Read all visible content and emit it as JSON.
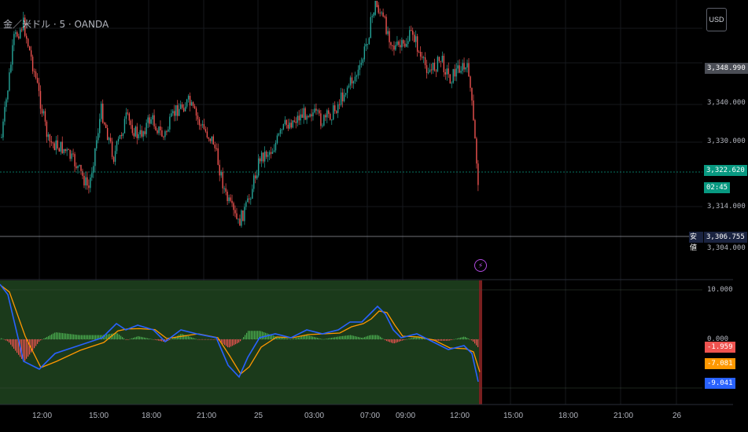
{
  "header": {
    "symbol_title": "金／米ドル · 5 · OANDA",
    "currency_button": "USD"
  },
  "price_axis": {
    "labels": [
      "3,340.000",
      "3,330.000",
      "3,314.000",
      "3,304.000"
    ],
    "tags": {
      "upper": "3,348.990",
      "last_price": "3,322.620",
      "countdown": "02:45",
      "session_label": "安値",
      "session_value": "3,306.755"
    }
  },
  "indicator_axis": {
    "top_label": "10.000",
    "mid_label": "0.000",
    "values": {
      "histogram": "-1.959",
      "signal": "-7.081",
      "macd": "-9.041"
    }
  },
  "time_axis": {
    "labels": [
      "12:00",
      "15:00",
      "18:00",
      "21:00",
      "25",
      "03:00",
      "07:00",
      "09:00",
      "12:00",
      "15:00",
      "18:00",
      "21:00",
      "26"
    ]
  },
  "icons": {
    "event_marker": "lightning-icon"
  },
  "colors": {
    "background": "#000000",
    "bull": "#26a69a",
    "bear": "#ef5350",
    "macd_line": "#2962ff",
    "signal_line": "#ff9800",
    "indicator_bg": "#1b3a1b",
    "last_price_tag": "#089981",
    "session_tag": "#1a2340"
  }
}
